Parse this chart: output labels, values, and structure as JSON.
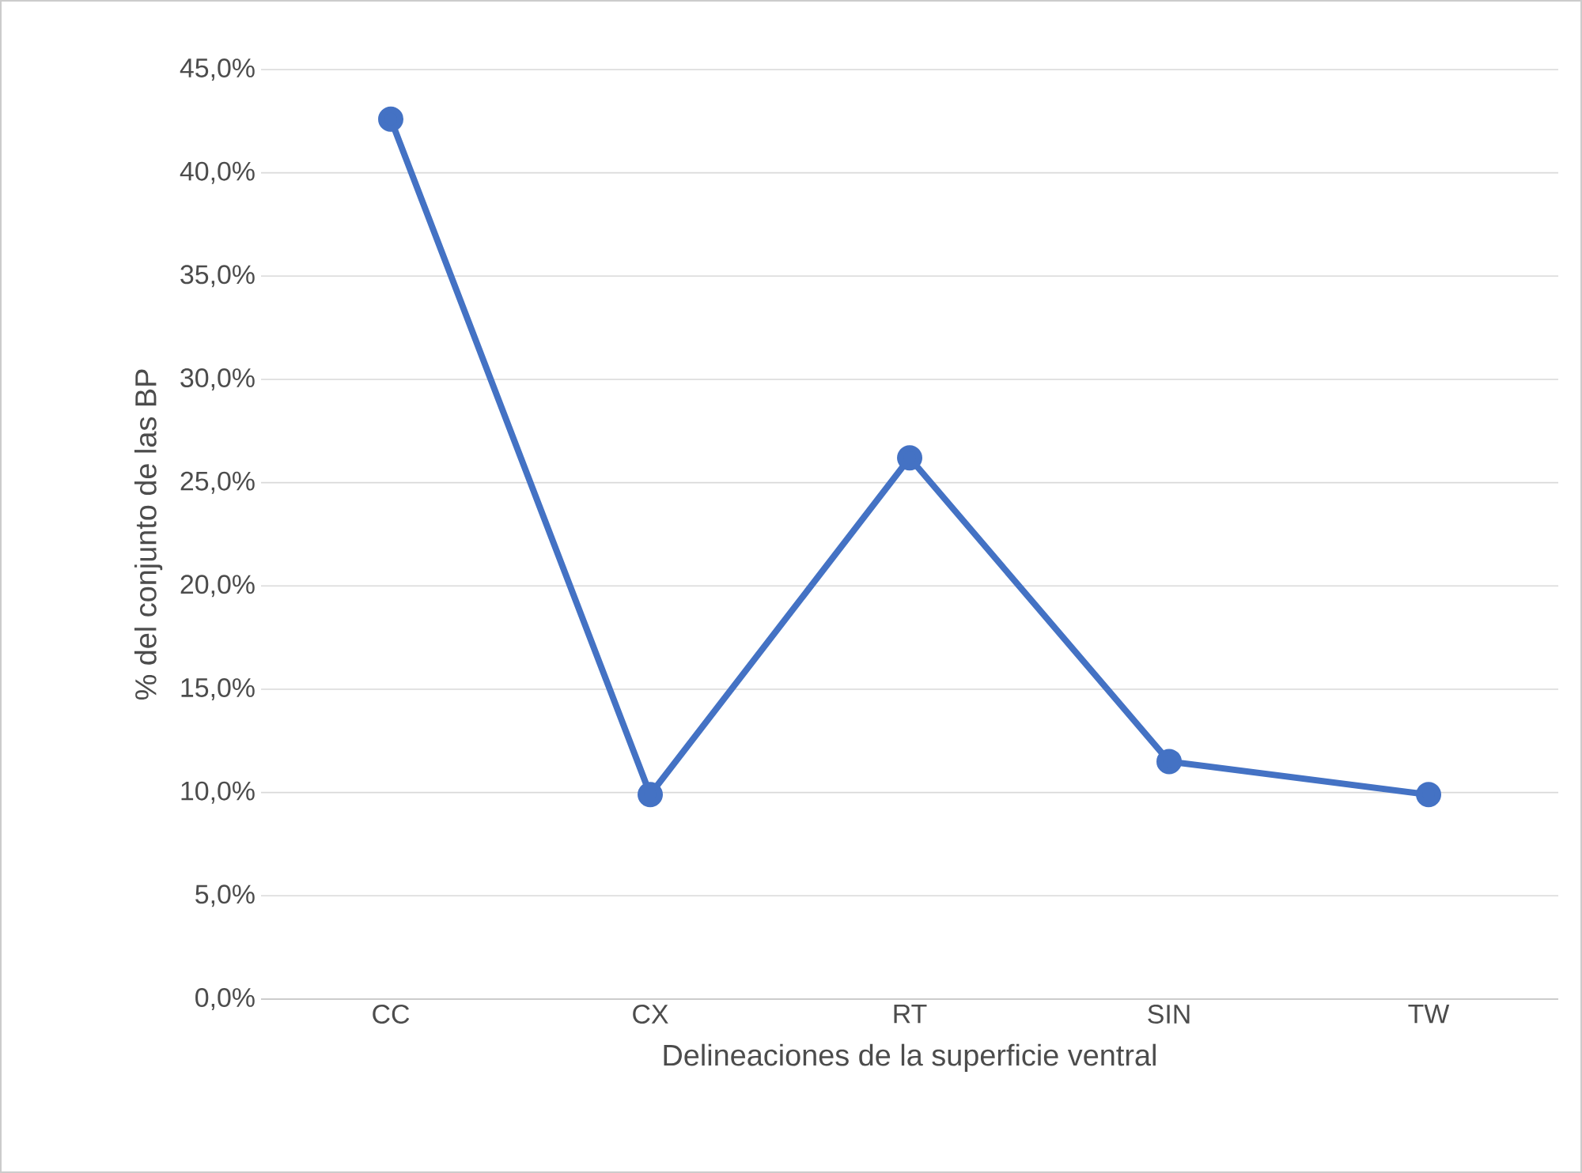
{
  "chart_data": {
    "type": "line",
    "xlabel": "Delineaciones de la superficie ventral",
    "ylabel": "% del conjunto de las BP",
    "categories": [
      "CC",
      "CX",
      "RT",
      "SIN",
      "TW"
    ],
    "values": [
      42.6,
      9.9,
      26.2,
      11.5,
      9.9
    ],
    "color": "#4472c4",
    "marker": "circle",
    "line_style": "solid",
    "ylim": [
      0,
      45
    ],
    "yticks": [
      {
        "value": 0,
        "label": "0,0%"
      },
      {
        "value": 5,
        "label": "5,0%"
      },
      {
        "value": 10,
        "label": "10,0%"
      },
      {
        "value": 15,
        "label": "15,0%"
      },
      {
        "value": 20,
        "label": "20,0%"
      },
      {
        "value": 25,
        "label": "25,0%"
      },
      {
        "value": 30,
        "label": "30,0%"
      },
      {
        "value": 35,
        "label": "35,0%"
      },
      {
        "value": 40,
        "label": "40,0%"
      },
      {
        "value": 45,
        "label": "45,0%"
      }
    ],
    "grid": "y"
  }
}
